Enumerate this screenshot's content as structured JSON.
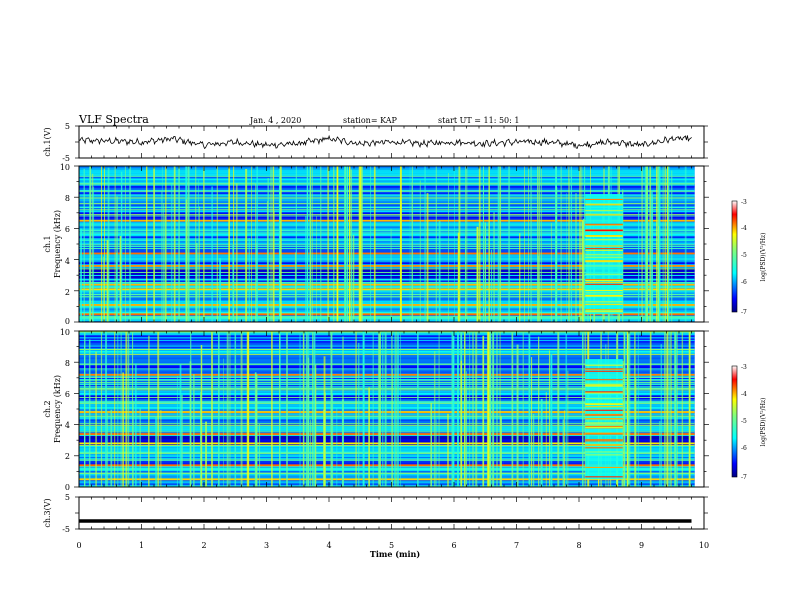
{
  "header": {
    "title": "VLF Spectra",
    "date": "Jan. 4 , 2020",
    "station": "station= KAP",
    "start": "start  UT =   11: 50: 1"
  },
  "chart_data": [
    {
      "id": "ch1-waveform",
      "type": "line",
      "ylabel": "ch.1(V)",
      "ylim": [
        -5,
        5
      ],
      "yticks": [
        "5",
        "-5"
      ],
      "x": [
        0.0,
        0.5,
        1.0,
        1.5,
        2.0,
        2.5,
        3.0,
        3.5,
        4.0,
        4.5,
        5.0,
        5.5,
        6.0,
        6.5,
        7.0,
        7.5,
        8.0,
        8.5,
        9.0,
        9.5,
        9.8
      ],
      "y": [
        0.5,
        0.3,
        0.0,
        1.0,
        -1.0,
        0.0,
        -1.0,
        -0.5,
        1.0,
        -0.5,
        0.0,
        -0.5,
        0.0,
        -0.5,
        0.0,
        0.0,
        -1.0,
        0.0,
        -1.0,
        1.0,
        1.0
      ]
    },
    {
      "id": "ch1-spectrogram",
      "type": "heatmap",
      "ylabel": "ch.1\nFrequency  (kHz)",
      "ylim": [
        0,
        10
      ],
      "yticks": [
        "0",
        "2",
        "4",
        "6",
        "8",
        "10"
      ],
      "xlim": [
        0,
        10
      ],
      "burst_x": [
        8.1,
        8.7
      ],
      "strong_lines_khz": [
        0.5,
        1.1,
        2.1,
        2.4,
        3.6,
        4.4,
        6.5
      ],
      "colorbar": {
        "label": "log(PSD)(V²/Hz)",
        "ticks": [
          "-3",
          "-4",
          "-5",
          "-6",
          "-7"
        ],
        "range": [
          -7,
          -3
        ]
      }
    },
    {
      "id": "ch2-spectrogram",
      "type": "heatmap",
      "ylabel": "ch.2\nFrequency  (kHz)",
      "ylim": [
        0,
        10
      ],
      "yticks": [
        "0",
        "2",
        "4",
        "6",
        "8",
        "10"
      ],
      "xlim": [
        0,
        10
      ],
      "burst_x": [
        8.1,
        8.7
      ],
      "strong_lines_khz": [
        0.5,
        1.4,
        2.8,
        3.4,
        4.8,
        7.2
      ],
      "colorbar": {
        "label": "log(PSD)(V²/Hz)",
        "ticks": [
          "-3",
          "-4",
          "-5",
          "-6",
          "-7"
        ],
        "range": [
          -7,
          -3
        ]
      }
    },
    {
      "id": "ch3-waveform",
      "type": "line",
      "ylabel": "ch.3(V)",
      "ylim": [
        -5,
        5
      ],
      "yticks": [
        "5",
        "-5"
      ],
      "x": [
        0.0,
        9.8
      ],
      "y": [
        -2.5,
        -2.5
      ]
    }
  ],
  "xaxis": {
    "label": "Time  (min)",
    "ticks": [
      "0",
      "1",
      "2",
      "3",
      "4",
      "5",
      "6",
      "7",
      "8",
      "9",
      "10"
    ],
    "range": [
      0,
      10
    ]
  }
}
